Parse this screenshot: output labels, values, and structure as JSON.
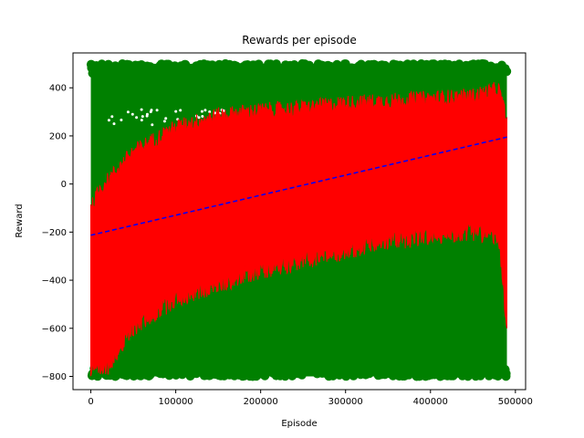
{
  "chart_data": {
    "type": "scatter",
    "title": "Rewards per episode",
    "xlabel": "Episode",
    "ylabel": "Reward",
    "xlim": [
      -21000,
      512000
    ],
    "ylim": [
      -855,
      545
    ],
    "xticks": [
      0,
      100000,
      200000,
      300000,
      400000,
      500000
    ],
    "yticks": [
      -800,
      -600,
      -400,
      -200,
      0,
      200,
      400
    ],
    "grid": false,
    "legend": "none",
    "colors": {
      "scatter": "#008000",
      "envelope": "#ff0000",
      "trend": "#0000ff"
    },
    "series": [
      {
        "kind": "scatter-band",
        "x_range": [
          0,
          490000
        ],
        "y_range": [
          -800,
          500
        ]
      },
      {
        "kind": "filled-envelope",
        "x": [
          0,
          10000,
          20000,
          30000,
          40000,
          50000,
          75000,
          100000,
          150000,
          200000,
          250000,
          300000,
          350000,
          400000,
          450000,
          480000,
          490000
        ],
        "upper": [
          -120,
          -40,
          0,
          40,
          80,
          120,
          170,
          220,
          270,
          290,
          300,
          320,
          330,
          340,
          350,
          380,
          250
        ],
        "lower": [
          -760,
          -760,
          -740,
          -680,
          -640,
          -580,
          -520,
          -460,
          -400,
          -340,
          -300,
          -260,
          -220,
          -200,
          -180,
          -200,
          -600
        ]
      },
      {
        "kind": "trend-line",
        "x": [
          0,
          490000
        ],
        "y": [
          -213,
          195
        ]
      }
    ]
  }
}
